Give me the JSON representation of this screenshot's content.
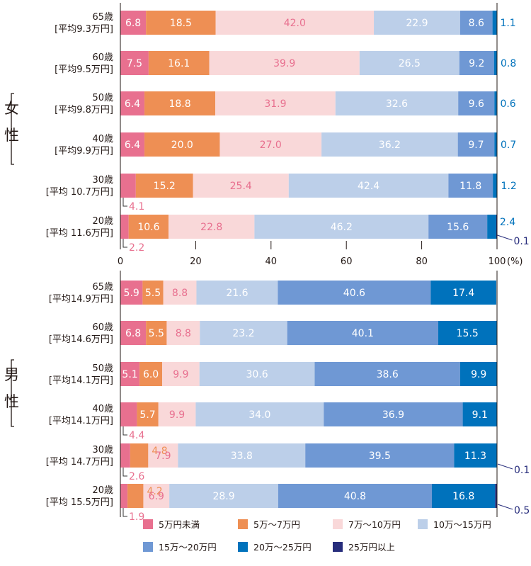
{
  "chart_data": {
    "type": "bar",
    "orientation": "horizontal",
    "stacked": true,
    "xlim": [
      0,
      100
    ],
    "x_unit": "(%)",
    "x_ticks": [
      "0",
      "20",
      "40",
      "60",
      "80",
      "100"
    ],
    "colors": [
      "#e8708f",
      "#ee8f54",
      "#f9d8d9",
      "#bccfe9",
      "#6f98d4",
      "#0072bc",
      "#272d7c"
    ],
    "legend": [
      "5万円未満",
      "5万～7万円",
      "7万～10万円",
      "10万～15万円",
      "15万～20万円",
      "20万～25万円",
      "25万円以上"
    ],
    "groups": [
      {
        "name": "女性",
        "rows": [
          {
            "age": "65歳",
            "avg": "[平均9.3万円]",
            "values": [
              6.8,
              18.5,
              42.0,
              22.9,
              8.6,
              1.1,
              0
            ],
            "labels": [
              "6.8",
              "18.5",
              "42.0",
              "22.9",
              "8.6",
              "1.1",
              ""
            ]
          },
          {
            "age": "60歳",
            "avg": "[平均9.5万円]",
            "values": [
              7.5,
              16.1,
              39.9,
              26.5,
              9.2,
              0.8,
              0
            ],
            "labels": [
              "7.5",
              "16.1",
              "39.9",
              "26.5",
              "9.2",
              "0.8",
              ""
            ]
          },
          {
            "age": "50歳",
            "avg": "[平均9.8万円]",
            "values": [
              6.4,
              18.8,
              31.9,
              32.6,
              9.6,
              0.6,
              0
            ],
            "labels": [
              "6.4",
              "18.8",
              "31.9",
              "32.6",
              "9.6",
              "0.6",
              ""
            ]
          },
          {
            "age": "40歳",
            "avg": "[平均9.9万円]",
            "values": [
              6.4,
              20.0,
              27.0,
              36.2,
              9.7,
              0.7,
              0
            ],
            "labels": [
              "6.4",
              "20.0",
              "27.0",
              "36.2",
              "9.7",
              "0.7",
              ""
            ]
          },
          {
            "age": "30歳",
            "avg": "[平均 10.7万円]",
            "values": [
              4.1,
              15.2,
              25.4,
              42.4,
              11.8,
              1.2,
              0
            ],
            "labels": [
              "4.1",
              "15.2",
              "25.4",
              "42.4",
              "11.8",
              "1.2",
              ""
            ]
          },
          {
            "age": "20歳",
            "avg": "[平均 11.6万円]",
            "values": [
              2.2,
              10.6,
              22.8,
              46.2,
              15.6,
              2.4,
              0.1
            ],
            "labels": [
              "2.2",
              "10.6",
              "22.8",
              "46.2",
              "15.6",
              "2.4",
              "0.1"
            ]
          }
        ]
      },
      {
        "name": "男性",
        "rows": [
          {
            "age": "65歳",
            "avg": "[平均14.9万円]",
            "values": [
              5.9,
              5.5,
              8.8,
              21.6,
              40.6,
              17.4,
              0
            ],
            "labels": [
              "5.9",
              "5.5",
              "8.8",
              "21.6",
              "40.6",
              "17.4",
              ""
            ]
          },
          {
            "age": "60歳",
            "avg": "[平均14.6万円]",
            "values": [
              6.8,
              5.5,
              8.8,
              23.2,
              40.1,
              15.5,
              0
            ],
            "labels": [
              "6.8",
              "5.5",
              "8.8",
              "23.2",
              "40.1",
              "15.5",
              ""
            ]
          },
          {
            "age": "50歳",
            "avg": "[平均14.1万円]",
            "values": [
              5.1,
              6.0,
              9.9,
              30.6,
              38.6,
              9.9,
              0
            ],
            "labels": [
              "5.1",
              "6.0",
              "9.9",
              "30.6",
              "38.6",
              "9.9",
              ""
            ]
          },
          {
            "age": "40歳",
            "avg": "[平均14.1万円]",
            "values": [
              4.4,
              5.7,
              9.9,
              34.0,
              36.9,
              9.1,
              0
            ],
            "labels": [
              "4.4",
              "5.7",
              "9.9",
              "34.0",
              "36.9",
              "9.1",
              ""
            ]
          },
          {
            "age": "30歳",
            "avg": "[平均 14.7万円]",
            "values": [
              2.6,
              4.8,
              7.9,
              33.8,
              39.5,
              11.3,
              0.1
            ],
            "labels": [
              "2.6",
              "4.8",
              "7.9",
              "33.8",
              "39.5",
              "11.3",
              "0.1"
            ]
          },
          {
            "age": "20歳",
            "avg": "[平均 15.5万円]",
            "values": [
              1.9,
              4.2,
              6.9,
              28.9,
              40.8,
              16.8,
              0.5
            ],
            "labels": [
              "1.9",
              "4.2",
              "6.9",
              "28.9",
              "40.8",
              "16.8",
              "0.5"
            ]
          }
        ]
      }
    ]
  }
}
